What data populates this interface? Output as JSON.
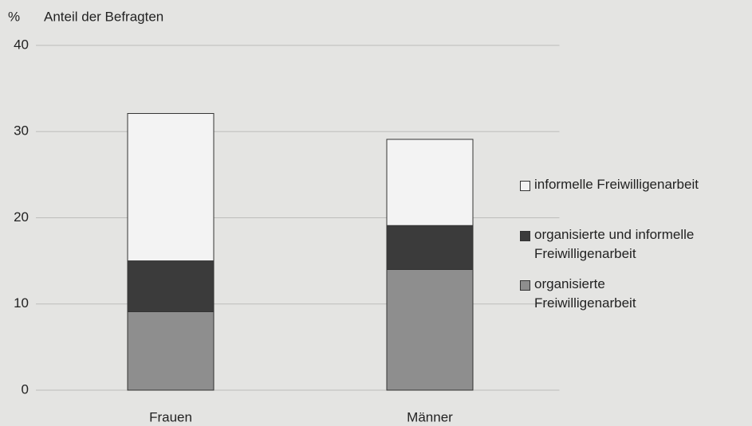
{
  "chart_data": {
    "type": "stacked_bar",
    "unit_label": "%",
    "y_label": "Anteil der Befragten",
    "categories": [
      "Frauen",
      "Männer"
    ],
    "series": [
      {
        "name": "organisierte\nFreiwilligenarbeit",
        "color": "#8e8e8e",
        "values": [
          9.1,
          14.0
        ]
      },
      {
        "name": "organisierte und informelle\nFreiwilligenarbeit",
        "color": "#3b3b3b",
        "values": [
          5.9,
          5.1
        ]
      },
      {
        "name": "informelle Freiwilligenarbeit",
        "color": "#f3f3f3",
        "values": [
          17.1,
          10.0
        ]
      }
    ],
    "ylim": [
      0,
      40
    ],
    "yticks": [
      0,
      10,
      20,
      30,
      40
    ],
    "grid": true
  }
}
